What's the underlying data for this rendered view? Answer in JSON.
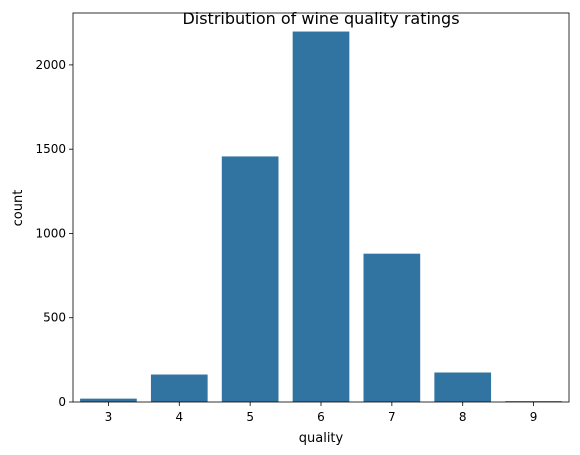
{
  "chart_data": {
    "type": "bar",
    "title": "Distribution of wine quality ratings",
    "xlabel": "quality",
    "ylabel": "count",
    "categories": [
      "3",
      "4",
      "5",
      "6",
      "7",
      "8",
      "9"
    ],
    "values": [
      20,
      163,
      1457,
      2198,
      880,
      175,
      5
    ],
    "ylim": [
      0,
      2308
    ],
    "yticks": [
      0,
      500,
      1000,
      1500,
      2000
    ],
    "bar_color": "#3274a1",
    "grid": false,
    "legend": "none"
  }
}
